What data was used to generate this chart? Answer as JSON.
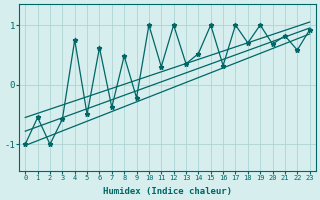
{
  "xlabel": "Humidex (Indice chaleur)",
  "bg_color": "#d6eeee",
  "line_color": "#006666",
  "grid_color": "#aed4d4",
  "x_data": [
    0,
    1,
    2,
    3,
    4,
    5,
    6,
    7,
    8,
    9,
    10,
    11,
    12,
    13,
    14,
    15,
    16,
    17,
    18,
    19,
    20,
    21,
    22,
    23
  ],
  "zigzag_y": [
    -1.0,
    -0.55,
    -1.0,
    -0.58,
    0.75,
    -0.5,
    0.62,
    -0.38,
    0.48,
    -0.22,
    1.0,
    0.3,
    1.0,
    0.35,
    0.52,
    1.0,
    0.32,
    1.0,
    0.7,
    1.0,
    0.68,
    0.82,
    0.58,
    0.92
  ],
  "upper_line_x": [
    0,
    23
  ],
  "upper_line_y": [
    -0.55,
    1.05
  ],
  "lower_line_x": [
    0,
    23
  ],
  "lower_line_y": [
    -1.02,
    0.85
  ],
  "mid_line_x": [
    0,
    23
  ],
  "mid_line_y": [
    -0.78,
    0.95
  ],
  "yticks": [
    -1,
    0,
    1
  ],
  "xticks": [
    0,
    1,
    2,
    3,
    4,
    5,
    6,
    7,
    8,
    9,
    10,
    11,
    12,
    13,
    14,
    15,
    16,
    17,
    18,
    19,
    20,
    21,
    22,
    23
  ],
  "ylim": [
    -1.45,
    1.35
  ],
  "xlim": [
    -0.5,
    23.5
  ]
}
